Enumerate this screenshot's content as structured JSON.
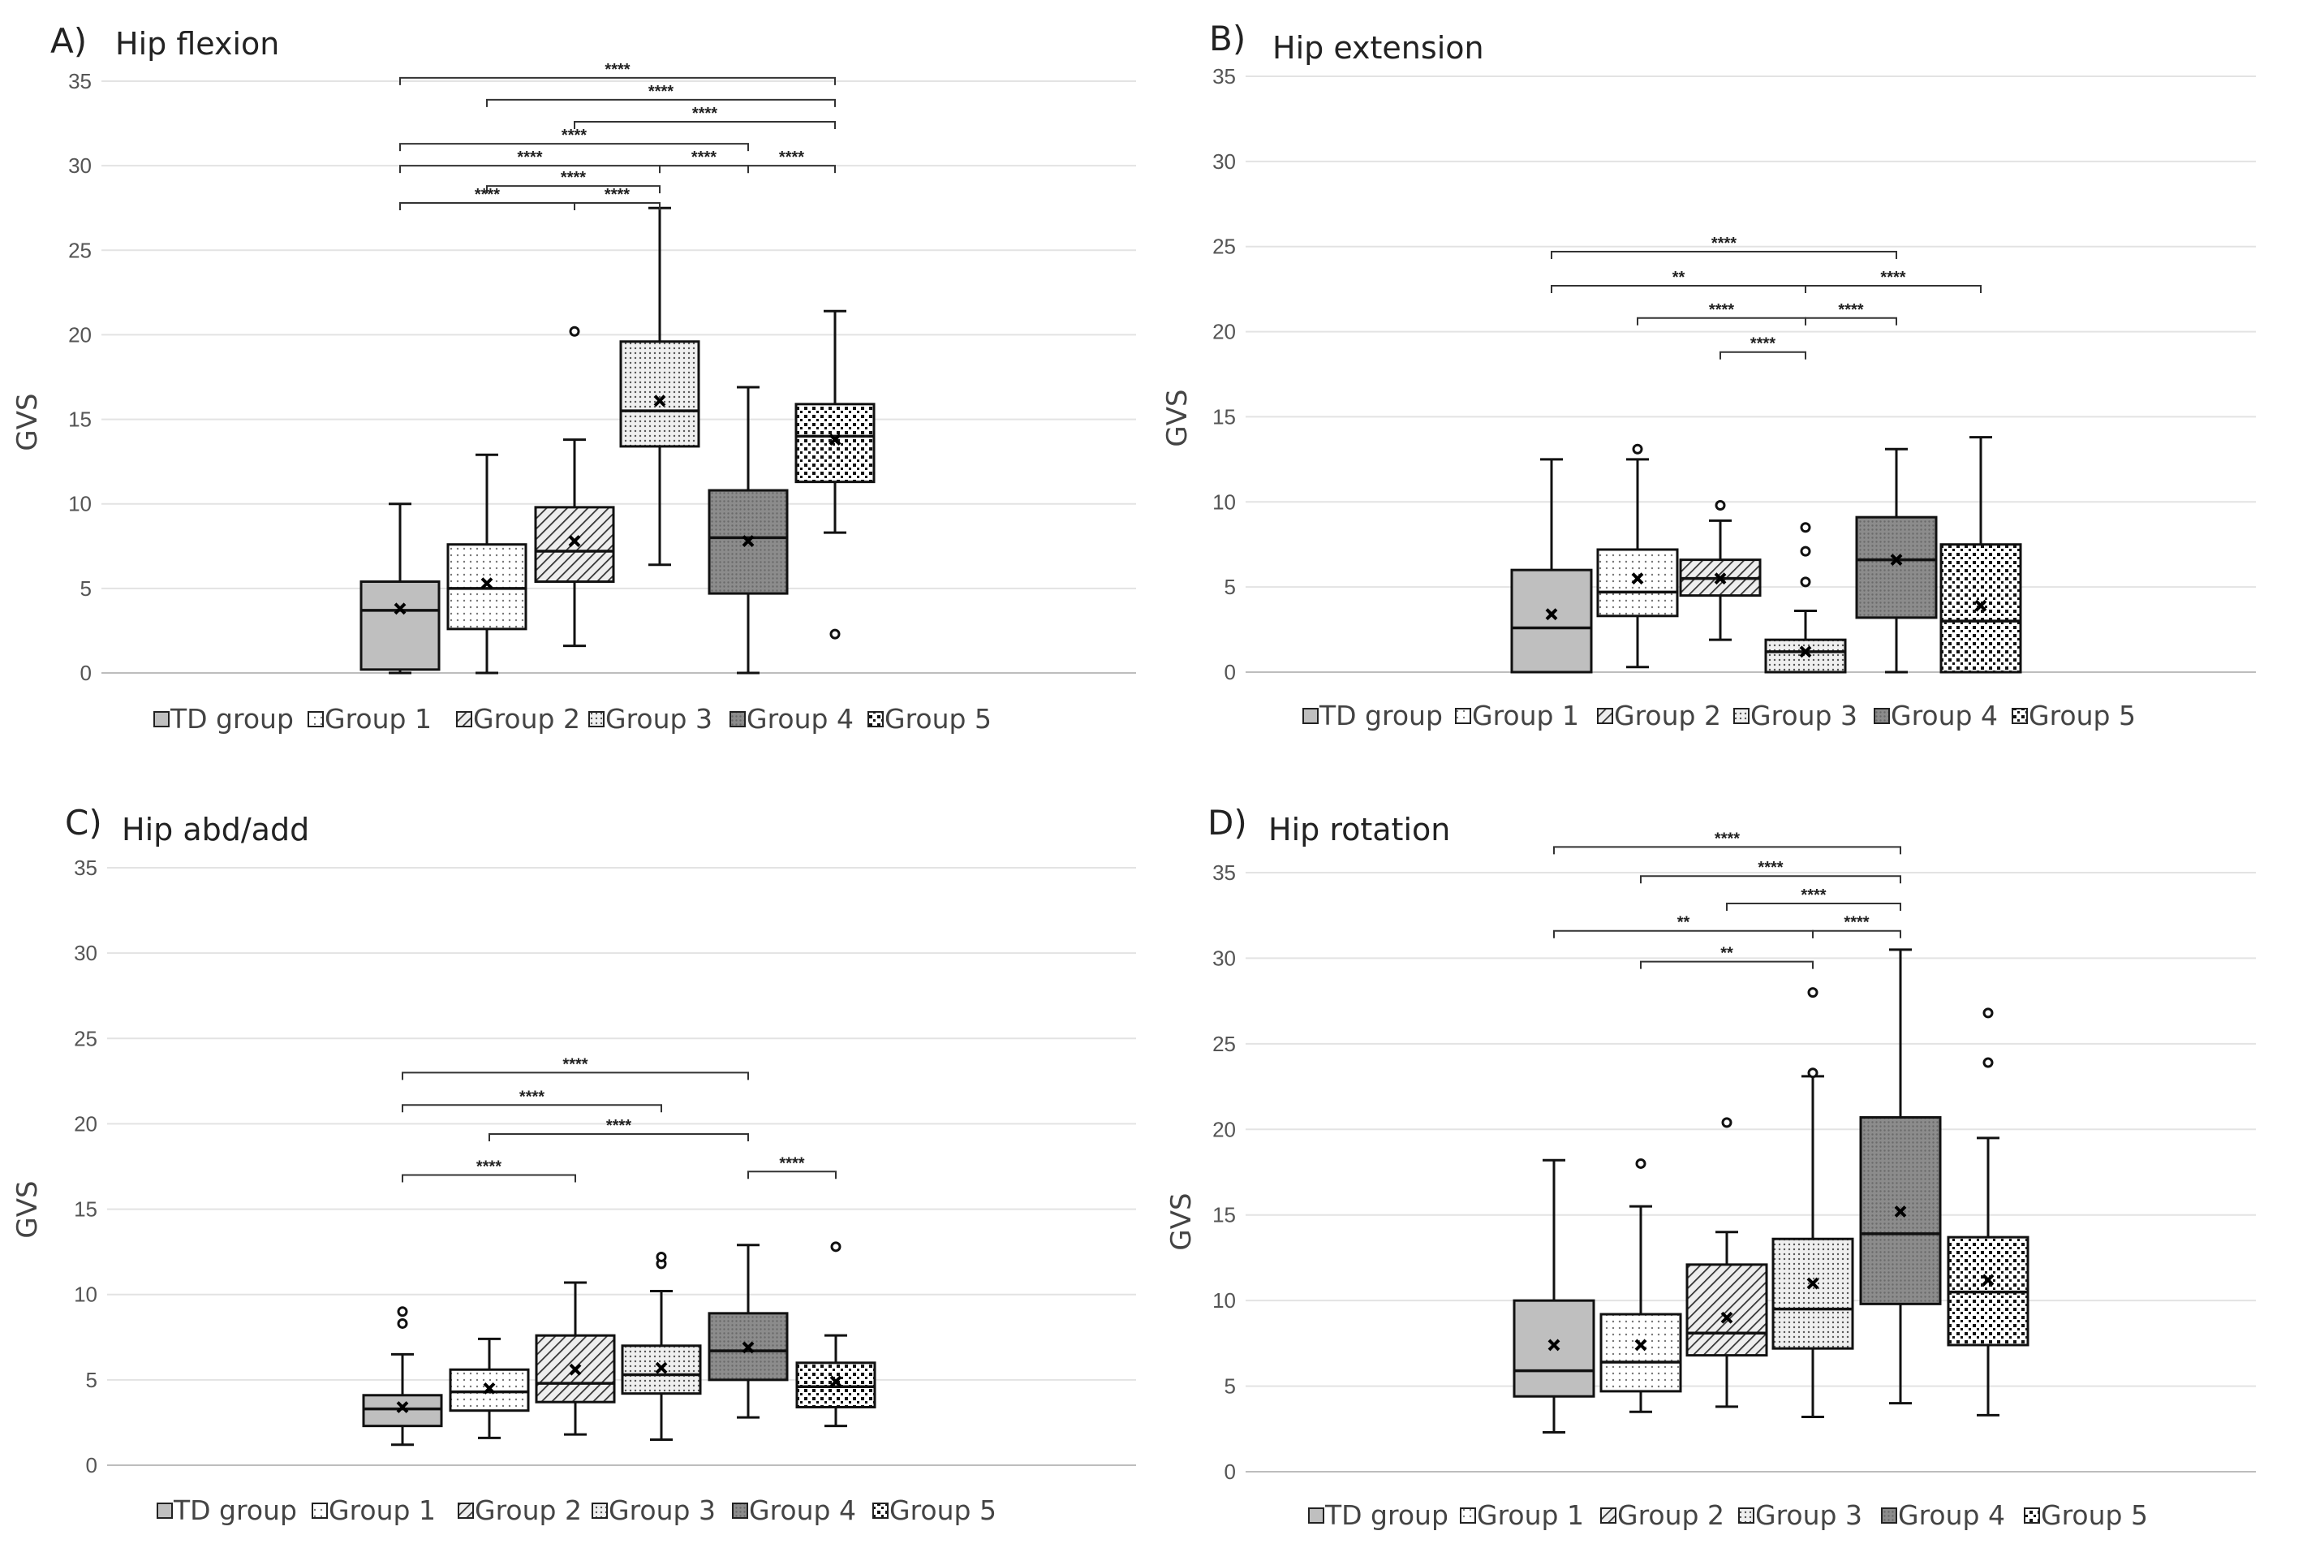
{
  "legend_labels": [
    "TD group",
    "Group 1",
    "Group 2",
    "Group 3",
    "Group 4",
    "Group 5"
  ],
  "chart_data": [
    {
      "type": "box",
      "panel_letter": "A)",
      "title": "Hip flexion",
      "ylabel": "GVS",
      "ylim": [
        0,
        35
      ],
      "yticks": [
        "0",
        "5",
        "10",
        "15",
        "20",
        "25",
        "30",
        "35"
      ],
      "grid": true,
      "legend_position": "bottom",
      "boxes": [
        {
          "group": "TD group",
          "min": 0,
          "q1": 0.2,
          "median": 3.7,
          "q3": 5.4,
          "max": 10.0,
          "mean": 3.8,
          "outliers": []
        },
        {
          "group": "Group 1",
          "min": 0,
          "q1": 2.6,
          "median": 5.0,
          "q3": 7.6,
          "max": 12.9,
          "mean": 5.3,
          "outliers": []
        },
        {
          "group": "Group 2",
          "min": 1.6,
          "q1": 5.4,
          "median": 7.2,
          "q3": 9.8,
          "max": 13.8,
          "mean": 7.8,
          "outliers": [
            20.2
          ]
        },
        {
          "group": "Group 3",
          "min": 6.4,
          "q1": 13.4,
          "median": 15.5,
          "q3": 19.6,
          "max": 27.5,
          "mean": 16.1,
          "outliers": []
        },
        {
          "group": "Group 4",
          "min": 0,
          "q1": 4.7,
          "median": 8.0,
          "q3": 10.8,
          "max": 16.9,
          "mean": 7.8,
          "outliers": []
        },
        {
          "group": "Group 5",
          "min": 8.3,
          "q1": 11.3,
          "median": 14.0,
          "q3": 15.9,
          "max": 21.4,
          "mean": 13.8,
          "outliers": [
            2.3
          ]
        }
      ],
      "significance": [
        {
          "from": 0,
          "to": 5,
          "y": 35.2,
          "label": "****"
        },
        {
          "from": 1,
          "to": 5,
          "y": 33.9,
          "label": "****"
        },
        {
          "from": 2,
          "to": 5,
          "y": 32.6,
          "label": "****"
        },
        {
          "from": 0,
          "to": 4,
          "y": 31.3,
          "label": "****"
        },
        {
          "from": 0,
          "to": 3,
          "y": 30.0,
          "label": "****"
        },
        {
          "from": 3,
          "to": 4,
          "y": 30.0,
          "label": "****"
        },
        {
          "from": 4,
          "to": 5,
          "y": 30.0,
          "label": "****"
        },
        {
          "from": 1,
          "to": 3,
          "y": 28.8,
          "label": "****"
        },
        {
          "from": 0,
          "to": 2,
          "y": 27.8,
          "label": "****"
        },
        {
          "from": 2,
          "to": 3,
          "y": 27.8,
          "label": "****"
        }
      ]
    },
    {
      "type": "box",
      "panel_letter": "B)",
      "title": "Hip extension",
      "ylabel": "GVS",
      "ylim": [
        0,
        35
      ],
      "yticks": [
        "0",
        "5",
        "10",
        "15",
        "20",
        "25",
        "30",
        "35"
      ],
      "grid": true,
      "legend_position": "bottom",
      "boxes": [
        {
          "group": "TD group",
          "min": 0,
          "q1": 0,
          "median": 2.6,
          "q3": 6.0,
          "max": 12.5,
          "mean": 3.4,
          "outliers": []
        },
        {
          "group": "Group 1",
          "min": 0.3,
          "q1": 3.3,
          "median": 4.7,
          "q3": 7.2,
          "max": 12.5,
          "mean": 5.5,
          "outliers": [
            13.1
          ]
        },
        {
          "group": "Group 2",
          "min": 1.9,
          "q1": 4.5,
          "median": 5.5,
          "q3": 6.6,
          "max": 8.9,
          "mean": 5.5,
          "outliers": [
            9.8
          ]
        },
        {
          "group": "Group 3",
          "min": 0,
          "q1": 0,
          "median": 1.2,
          "q3": 1.9,
          "max": 3.6,
          "mean": 1.2,
          "outliers": [
            5.3,
            7.1,
            8.5
          ]
        },
        {
          "group": "Group 4",
          "min": 0,
          "q1": 3.2,
          "median": 6.6,
          "q3": 9.1,
          "max": 13.1,
          "mean": 6.6,
          "outliers": []
        },
        {
          "group": "Group 5",
          "min": 0,
          "q1": 0,
          "median": 3.0,
          "q3": 7.5,
          "max": 13.8,
          "mean": 3.9,
          "outliers": []
        }
      ],
      "significance": [
        {
          "from": 0,
          "to": 4,
          "y": 24.7,
          "label": "****"
        },
        {
          "from": 0,
          "to": 3,
          "y": 22.7,
          "label": "**"
        },
        {
          "from": 3,
          "to": 5,
          "y": 22.7,
          "label": "****"
        },
        {
          "from": 1,
          "to": 3,
          "y": 20.8,
          "label": "****"
        },
        {
          "from": 3,
          "to": 4,
          "y": 20.8,
          "label": "****"
        },
        {
          "from": 2,
          "to": 3,
          "y": 18.8,
          "label": "****"
        }
      ]
    },
    {
      "type": "box",
      "panel_letter": "C)",
      "title": "Hip abd/add",
      "ylabel": "GVS",
      "ylim": [
        0,
        35
      ],
      "yticks": [
        "0",
        "5",
        "10",
        "15",
        "20",
        "25",
        "30",
        "35"
      ],
      "grid": true,
      "legend_position": "bottom",
      "boxes": [
        {
          "group": "TD group",
          "min": 1.2,
          "q1": 2.3,
          "median": 3.3,
          "q3": 4.1,
          "max": 6.5,
          "mean": 3.4,
          "outliers": [
            8.3,
            9.0
          ]
        },
        {
          "group": "Group 1",
          "min": 1.6,
          "q1": 3.2,
          "median": 4.3,
          "q3": 5.6,
          "max": 7.4,
          "mean": 4.5,
          "outliers": []
        },
        {
          "group": "Group 2",
          "min": 1.8,
          "q1": 3.7,
          "median": 4.8,
          "q3": 7.6,
          "max": 10.7,
          "mean": 5.6,
          "outliers": []
        },
        {
          "group": "Group 3",
          "min": 1.5,
          "q1": 4.2,
          "median": 5.3,
          "q3": 7.0,
          "max": 10.2,
          "mean": 5.7,
          "outliers": [
            11.8,
            12.2
          ]
        },
        {
          "group": "Group 4",
          "min": 2.8,
          "q1": 5.0,
          "median": 6.7,
          "q3": 8.9,
          "max": 12.9,
          "mean": 6.9,
          "outliers": []
        },
        {
          "group": "Group 5",
          "min": 2.3,
          "q1": 3.4,
          "median": 4.6,
          "q3": 6.0,
          "max": 7.6,
          "mean": 4.9,
          "outliers": [
            12.8
          ]
        }
      ],
      "significance": [
        {
          "from": 0,
          "to": 4,
          "y": 23.0,
          "label": "****"
        },
        {
          "from": 0,
          "to": 3,
          "y": 21.1,
          "label": "****"
        },
        {
          "from": 1,
          "to": 4,
          "y": 19.4,
          "label": "****"
        },
        {
          "from": 0,
          "to": 2,
          "y": 17.0,
          "label": "****"
        },
        {
          "from": 4,
          "to": 5,
          "y": 17.2,
          "label": "****"
        }
      ]
    },
    {
      "type": "box",
      "panel_letter": "D)",
      "title": "Hip rotation",
      "ylabel": "GVS",
      "ylim": [
        0,
        35
      ],
      "yticks": [
        "0",
        "5",
        "10",
        "15",
        "20",
        "25",
        "30",
        "35"
      ],
      "grid": true,
      "legend_position": "bottom",
      "boxes": [
        {
          "group": "TD group",
          "min": 2.3,
          "q1": 4.4,
          "median": 5.9,
          "q3": 10.0,
          "max": 18.2,
          "mean": 7.4,
          "outliers": []
        },
        {
          "group": "Group 1",
          "min": 3.5,
          "q1": 4.7,
          "median": 6.4,
          "q3": 9.2,
          "max": 15.5,
          "mean": 7.4,
          "outliers": [
            18.0
          ]
        },
        {
          "group": "Group 2",
          "min": 3.8,
          "q1": 6.8,
          "median": 8.1,
          "q3": 12.1,
          "max": 14.0,
          "mean": 9.0,
          "outliers": [
            20.4
          ]
        },
        {
          "group": "Group 3",
          "min": 3.2,
          "q1": 7.2,
          "median": 9.5,
          "q3": 13.6,
          "max": 23.1,
          "mean": 11.0,
          "outliers": [
            23.3,
            28.0
          ]
        },
        {
          "group": "Group 4",
          "min": 4.0,
          "q1": 9.8,
          "median": 13.9,
          "q3": 20.7,
          "max": 30.5,
          "mean": 15.2,
          "outliers": []
        },
        {
          "group": "Group 5",
          "min": 3.3,
          "q1": 7.4,
          "median": 10.5,
          "q3": 13.7,
          "max": 19.5,
          "mean": 11.2,
          "outliers": [
            23.9,
            26.8
          ]
        }
      ],
      "significance": [
        {
          "from": 0,
          "to": 4,
          "y": 36.5,
          "label": "****"
        },
        {
          "from": 1,
          "to": 4,
          "y": 34.8,
          "label": "****"
        },
        {
          "from": 2,
          "to": 4,
          "y": 33.2,
          "label": "****"
        },
        {
          "from": 0,
          "to": 3,
          "y": 31.6,
          "label": "**"
        },
        {
          "from": 3,
          "to": 4,
          "y": 31.6,
          "label": "****"
        },
        {
          "from": 1,
          "to": 3,
          "y": 29.8,
          "label": "**"
        }
      ]
    }
  ]
}
